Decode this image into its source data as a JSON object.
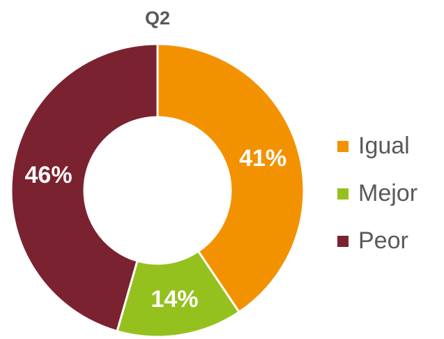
{
  "chart_data": {
    "type": "donut",
    "title": "Q2",
    "categories": [
      "Igual",
      "Mejor",
      "Peor"
    ],
    "values": [
      41,
      14,
      46
    ],
    "value_labels": [
      "41%",
      "14%",
      "46%"
    ],
    "colors": [
      "#F39200",
      "#95C11F",
      "#7B2230"
    ],
    "legend": "right"
  }
}
